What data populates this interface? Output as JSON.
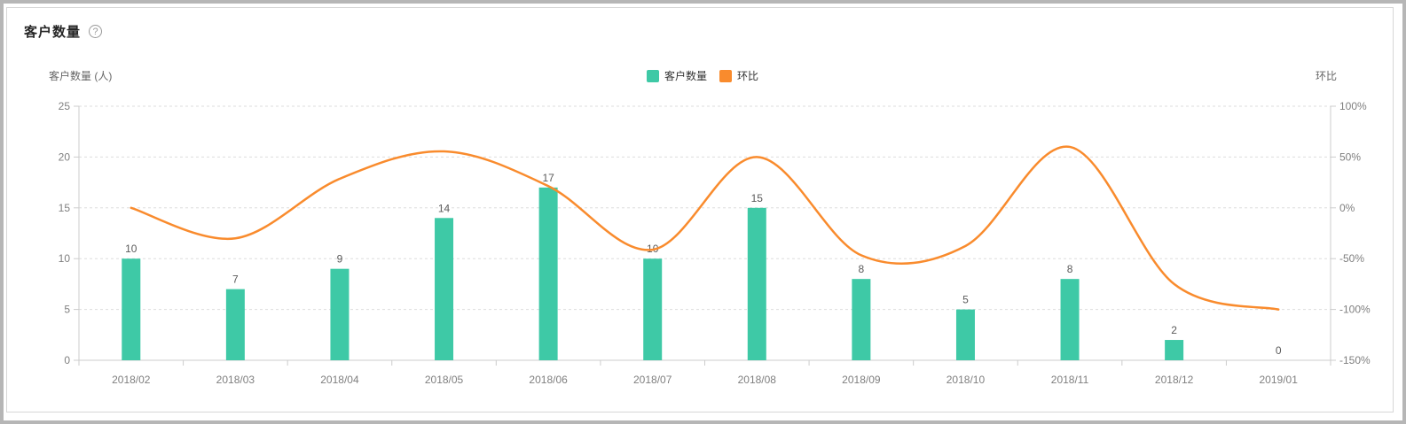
{
  "panel": {
    "title": "客户数量",
    "help_icon": "?"
  },
  "chart_data": {
    "type": "bar+line combo (dual y-axis)",
    "title": "客户数量",
    "categories": [
      "2018/02",
      "2018/03",
      "2018/04",
      "2018/05",
      "2018/06",
      "2018/07",
      "2018/08",
      "2018/09",
      "2018/10",
      "2018/11",
      "2018/12",
      "2019/01"
    ],
    "series": [
      {
        "name": "客户数量",
        "type": "bar",
        "y_axis": "left",
        "unit": "人",
        "color": "#3ec9a6",
        "values": [
          10,
          7,
          9,
          14,
          17,
          10,
          15,
          8,
          5,
          8,
          2,
          0
        ],
        "data_labels_shown": true
      },
      {
        "name": "环比",
        "type": "line",
        "y_axis": "right",
        "unit": "%",
        "color": "#f98b2d",
        "smooth": true,
        "values": [
          0,
          -30,
          28.57,
          55.56,
          21.43,
          -41.18,
          50,
          -46.67,
          -37.5,
          60,
          -75,
          -100
        ]
      }
    ],
    "left_axis": {
      "name": "客户数量 (人)",
      "min": 0,
      "max": 25,
      "ticks": [
        0,
        5,
        10,
        15,
        20,
        25
      ]
    },
    "right_axis": {
      "name": "环比",
      "min": -150,
      "max": 100,
      "ticks": [
        {
          "value": -150,
          "label": "-150%"
        },
        {
          "value": -100,
          "label": "-100%"
        },
        {
          "value": -50,
          "label": "-50%"
        },
        {
          "value": 0,
          "label": "0%"
        },
        {
          "value": 50,
          "label": "50%"
        },
        {
          "value": 100,
          "label": "100%"
        }
      ]
    },
    "legend": [
      {
        "label": "客户数量",
        "color": "#3ec9a6"
      },
      {
        "label": "环比",
        "color": "#f98b2d"
      }
    ],
    "grid": {
      "horizontal_gridlines": "dashed",
      "vertical_gridlines": "none"
    },
    "colors": {
      "axis_line": "#cccccc",
      "gridline": "#dddddd",
      "tick_label": "#7f7f7f",
      "data_label": "#5a5a5a"
    }
  }
}
